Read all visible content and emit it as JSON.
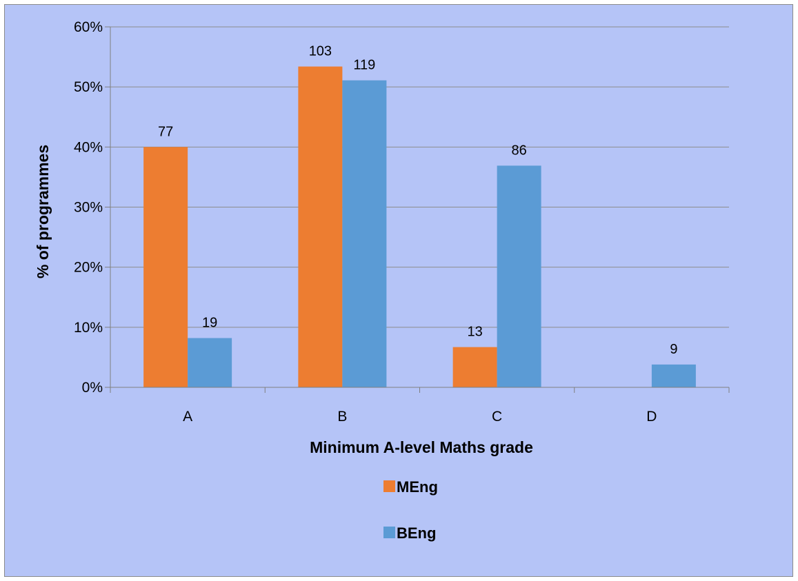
{
  "chart_data": {
    "type": "bar",
    "title": "",
    "xlabel": "Minimum A-level Maths grade",
    "ylabel": "% of programmes",
    "categories": [
      "A",
      "B",
      "C",
      "D"
    ],
    "ylim": [
      0,
      0.6
    ],
    "yticks": [
      0,
      0.1,
      0.2,
      0.3,
      0.4,
      0.5,
      0.6
    ],
    "ytick_labels": [
      "0%",
      "10%",
      "20%",
      "30%",
      "40%",
      "50%",
      "60%"
    ],
    "grid": true,
    "legend_position": "bottom",
    "series": [
      {
        "name": "MEng",
        "color": "#ed7d31",
        "values": [
          0.4,
          0.534,
          0.067,
          0
        ],
        "data_labels": [
          "77",
          "103",
          "13",
          ""
        ]
      },
      {
        "name": "BEng",
        "color": "#5b9bd5",
        "values": [
          0.082,
          0.511,
          0.369,
          0.038
        ],
        "data_labels": [
          "19",
          "119",
          "86",
          "9"
        ]
      }
    ]
  }
}
